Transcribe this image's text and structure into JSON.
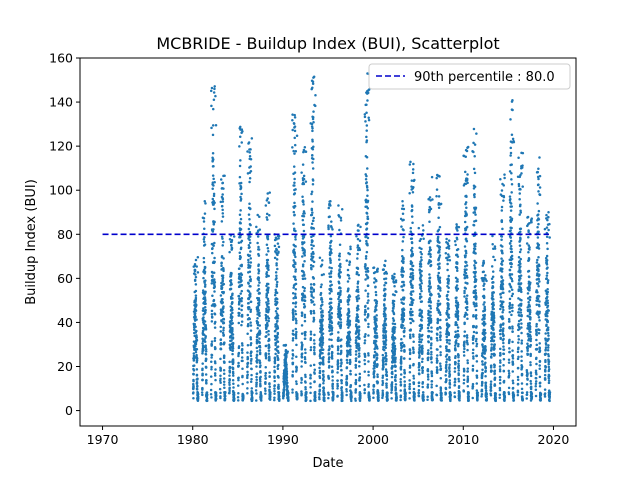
{
  "chart_data": {
    "type": "scatter",
    "title": "MCBRIDE - Buildup Index (BUI), Scatterplot",
    "xlabel": "Date",
    "ylabel": "Buildup Index (BUI)",
    "xlim": [
      1967.5,
      2022.5
    ],
    "ylim": [
      -7,
      160
    ],
    "xticks": [
      1970,
      1980,
      1990,
      2000,
      2010,
      2020
    ],
    "yticks": [
      0,
      20,
      40,
      60,
      80,
      100,
      120,
      140,
      160
    ],
    "point_color": "#1f77b4",
    "reference_line": {
      "label": "90th percentile : 80.0",
      "y": 80.0,
      "x_range": [
        1970,
        2019.5
      ],
      "color": "#0000cc",
      "style": "dashed"
    },
    "legend": {
      "placement": "top-right"
    },
    "grid": false,
    "seasons": [
      {
        "year": 1980,
        "peak": 70
      },
      {
        "year": 1981,
        "peak": 95
      },
      {
        "year": 1982,
        "peak": 150
      },
      {
        "year": 1983,
        "peak": 111
      },
      {
        "year": 1984,
        "peak": 80
      },
      {
        "year": 1985,
        "peak": 136
      },
      {
        "year": 1986,
        "peak": 124
      },
      {
        "year": 1987,
        "peak": 90
      },
      {
        "year": 1988,
        "peak": 100
      },
      {
        "year": 1989,
        "peak": 80
      },
      {
        "year": 1990,
        "peak": 30
      },
      {
        "year": 1991,
        "peak": 138
      },
      {
        "year": 1992,
        "peak": 122
      },
      {
        "year": 1993,
        "peak": 152
      },
      {
        "year": 1994,
        "peak": 70
      },
      {
        "year": 1995,
        "peak": 95
      },
      {
        "year": 1996,
        "peak": 94
      },
      {
        "year": 1997,
        "peak": 75
      },
      {
        "year": 1998,
        "peak": 85
      },
      {
        "year": 1999,
        "peak": 153
      },
      {
        "year": 2000,
        "peak": 65
      },
      {
        "year": 2001,
        "peak": 68
      },
      {
        "year": 2002,
        "peak": 62
      },
      {
        "year": 2003,
        "peak": 95
      },
      {
        "year": 2004,
        "peak": 115
      },
      {
        "year": 2005,
        "peak": 86
      },
      {
        "year": 2006,
        "peak": 107
      },
      {
        "year": 2007,
        "peak": 108
      },
      {
        "year": 2008,
        "peak": 80
      },
      {
        "year": 2009,
        "peak": 85
      },
      {
        "year": 2010,
        "peak": 120
      },
      {
        "year": 2011,
        "peak": 129
      },
      {
        "year": 2012,
        "peak": 68
      },
      {
        "year": 2013,
        "peak": 80
      },
      {
        "year": 2014,
        "peak": 108
      },
      {
        "year": 2015,
        "peak": 142
      },
      {
        "year": 2016,
        "peak": 117
      },
      {
        "year": 2017,
        "peak": 88
      },
      {
        "year": 2018,
        "peak": 115
      },
      {
        "year": 2019,
        "peak": 90
      }
    ]
  }
}
